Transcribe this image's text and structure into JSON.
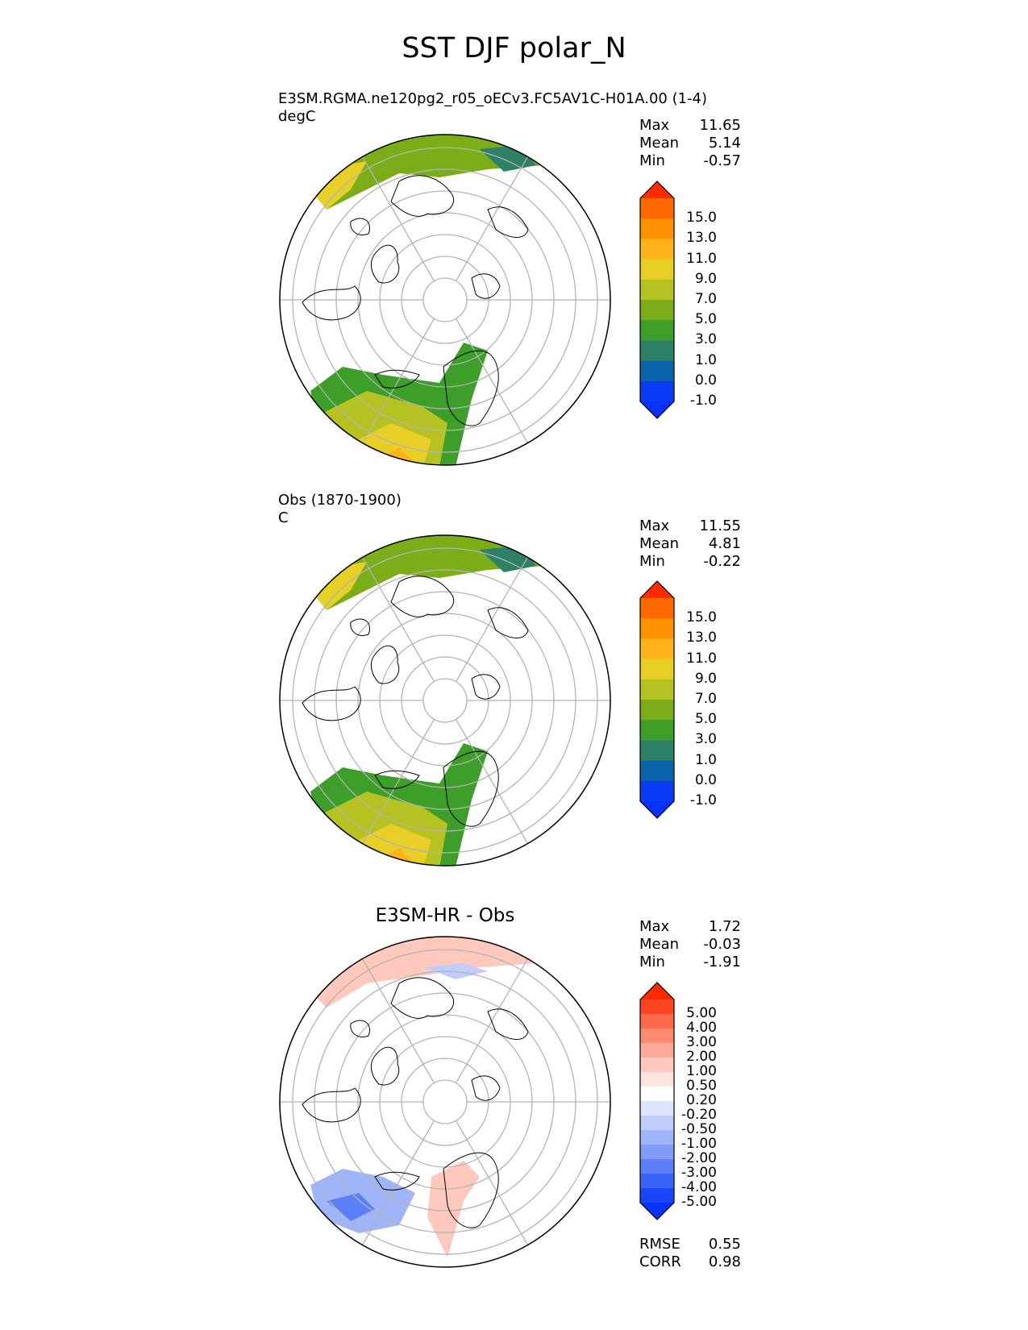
{
  "title": "SST DJF polar_N",
  "colors": {
    "land": "#ffffff",
    "grid": "#b3b3b3",
    "coast": "#000000"
  },
  "chart_data": [
    {
      "type": "heatmap",
      "projection": "north-polar-stereographic",
      "subtitle_line1": "E3SM.RGMA.ne120pg2_r05_oECv3.FC5AV1C-H01A.00 (1-4)",
      "subtitle_line2": "degC",
      "stats": [
        {
          "label": "Max",
          "value": "11.65"
        },
        {
          "label": "Mean",
          "value": "5.14"
        },
        {
          "label": "Min",
          "value": "-0.57"
        }
      ],
      "colorbar": {
        "ticks": [
          "15.0",
          "13.0",
          "11.0",
          "9.0",
          "7.0",
          "5.0",
          "3.0",
          "1.0",
          "0.0",
          "-1.0"
        ],
        "colors": [
          "#ff2a00",
          "#ff6a00",
          "#ff9200",
          "#ffb21a",
          "#e8cf28",
          "#b5c221",
          "#7aad17",
          "#3d9e2a",
          "#2e8066",
          "#0a64aa",
          "#0a3cf5",
          "#0a32ff"
        ],
        "extend": "both"
      }
    },
    {
      "type": "heatmap",
      "projection": "north-polar-stereographic",
      "subtitle_line1": "Obs (1870-1900)",
      "subtitle_line2": "C",
      "stats": [
        {
          "label": "Max",
          "value": "11.55"
        },
        {
          "label": "Mean",
          "value": "4.81"
        },
        {
          "label": "Min",
          "value": "-0.22"
        }
      ],
      "colorbar": {
        "ticks": [
          "15.0",
          "13.0",
          "11.0",
          "9.0",
          "7.0",
          "5.0",
          "3.0",
          "1.0",
          "0.0",
          "-1.0"
        ],
        "colors": [
          "#ff2a00",
          "#ff6a00",
          "#ff9200",
          "#ffb21a",
          "#e8cf28",
          "#b5c221",
          "#7aad17",
          "#3d9e2a",
          "#2e8066",
          "#0a64aa",
          "#0a3cf5",
          "#0a32ff"
        ],
        "extend": "both"
      }
    },
    {
      "type": "heatmap",
      "projection": "north-polar-stereographic",
      "title": "E3SM-HR - Obs",
      "stats": [
        {
          "label": "Max",
          "value": "1.72"
        },
        {
          "label": "Mean",
          "value": "-0.03"
        },
        {
          "label": "Min",
          "value": "-1.91"
        }
      ],
      "metrics": [
        {
          "label": "RMSE",
          "value": "0.55"
        },
        {
          "label": "CORR",
          "value": "0.98"
        }
      ],
      "colorbar": {
        "ticks": [
          "5.00",
          "4.00",
          "3.00",
          "2.00",
          "1.00",
          "0.50",
          "0.20",
          "-0.20",
          "-0.50",
          "-1.00",
          "-2.00",
          "-3.00",
          "-4.00",
          "-5.00"
        ],
        "colors": [
          "#ff2a00",
          "#ff4420",
          "#ff6848",
          "#ff8a70",
          "#ffaa98",
          "#ffc8bc",
          "#fde4df",
          "#ffffff",
          "#dde4fb",
          "#c0ccf9",
          "#a0b4f8",
          "#809cf7",
          "#5c80f7",
          "#3a64f7",
          "#1a46f8",
          "#0a32ff"
        ],
        "extend": "both"
      }
    }
  ]
}
